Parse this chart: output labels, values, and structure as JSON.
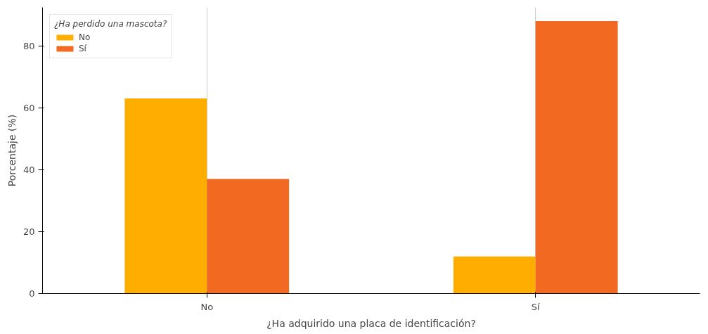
{
  "chart_data": {
    "type": "bar",
    "xlabel": "¿Ha adquirido una placa de identificación?",
    "ylabel": "Porcentaje (%)",
    "legend_title": "¿Ha perdido una mascota?",
    "categories": [
      "No",
      "Sí"
    ],
    "series": [
      {
        "name": "No",
        "color": "#ffae00",
        "values": [
          63,
          12
        ]
      },
      {
        "name": "Sí",
        "color": "#f26a22",
        "values": [
          37,
          88
        ]
      }
    ],
    "ylim": [
      0,
      92.4
    ],
    "yticks": [
      0,
      20,
      40,
      60,
      80
    ],
    "grid": "x",
    "legend": "top left"
  }
}
